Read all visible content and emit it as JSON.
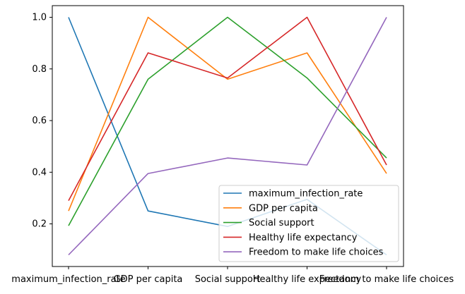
{
  "chart_data": {
    "type": "line",
    "categories": [
      "maximum_infection_rate",
      "GDP per capita",
      "Social support",
      "Healthy life expectancy",
      "Freedom to make life choices"
    ],
    "ylim": [
      0.035,
      1.045
    ],
    "yticks": [
      0.2,
      0.4,
      0.6,
      0.8,
      1.0
    ],
    "ytick_labels": [
      "0.2",
      "0.4",
      "0.6",
      "0.8",
      "1.0"
    ],
    "xtick_labels": [
      "maximum_infection_rate",
      "GDP per capita",
      "Social support",
      "Healthy life expectancy",
      "Freedom to make life choices"
    ],
    "grid": false,
    "legend_position": "lower-right",
    "series": [
      {
        "name": "maximum_infection_rate",
        "color": "#1f77b4",
        "values": [
          1.0,
          0.25,
          0.19,
          0.295,
          0.08
        ]
      },
      {
        "name": "GDP per capita",
        "color": "#ff7f0e",
        "values": [
          0.25,
          1.0,
          0.76,
          0.862,
          0.395
        ]
      },
      {
        "name": "Social support",
        "color": "#2ca02c",
        "values": [
          0.193,
          0.76,
          1.0,
          0.765,
          0.455
        ]
      },
      {
        "name": "Healthy life expectancy",
        "color": "#d62728",
        "values": [
          0.29,
          0.862,
          0.765,
          1.0,
          0.428
        ]
      },
      {
        "name": "Freedom to make life choices",
        "color": "#9467bd",
        "values": [
          0.08,
          0.395,
          0.455,
          0.428,
          1.0
        ]
      }
    ]
  }
}
